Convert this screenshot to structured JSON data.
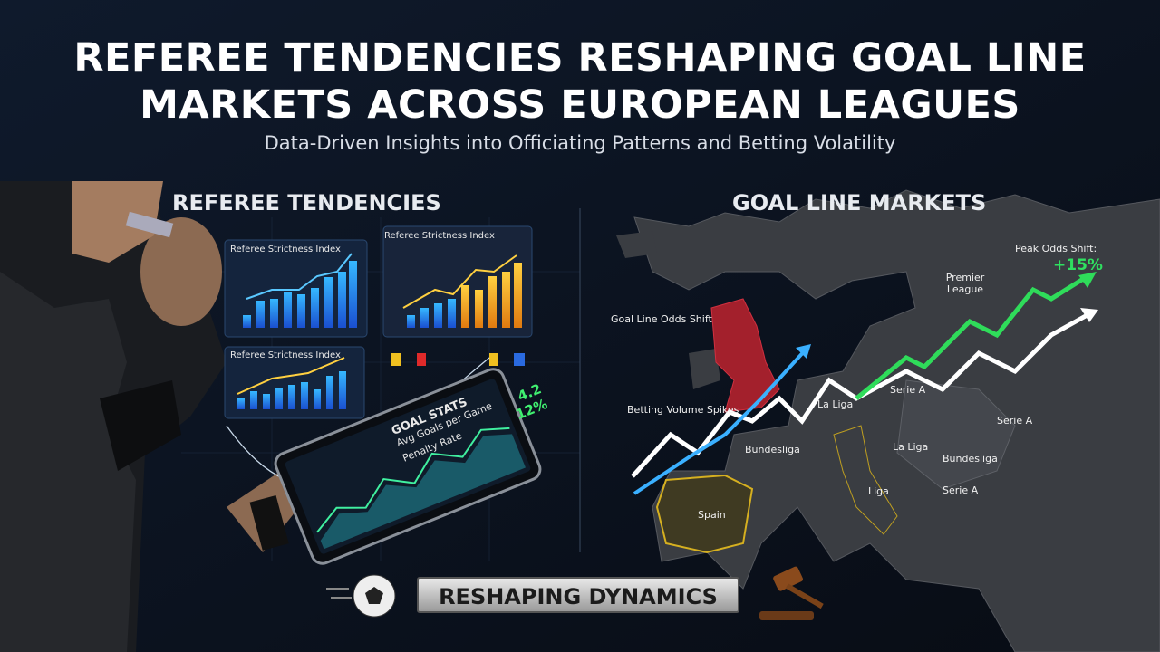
{
  "header": {
    "title": "REFEREE TENDENCIES RESHAPING GOAL LINE MARKETS ACROSS EUROPEAN LEAGUES",
    "subtitle": "Data-Driven Insights into Officiating Patterns and Betting Volatility"
  },
  "left_panel": {
    "heading": "REFEREE TENDENCIES",
    "mini_charts": [
      "Referee Strictness Index",
      "Referee Strictness Index",
      "Referee Strictness Index"
    ],
    "tablet": {
      "title": "GOAL STATS",
      "rows": [
        {
          "label": "Avg Goals per Game",
          "value": "4.2"
        },
        {
          "label": "Penalty Rate",
          "value": "12%"
        }
      ]
    }
  },
  "right_panel": {
    "heading": "GOAL LINE MARKETS",
    "chart_labels": [
      "Goal Line Odds Shift",
      "Betting Volume Spikes"
    ],
    "peak": {
      "label": "Peak Odds Shift:",
      "value": "+15%"
    },
    "map_labels": [
      "Premier League",
      "La Liga",
      "Serie A",
      "Serie A",
      "Bundesliga",
      "Bundesliga",
      "Serie A",
      "La Liga",
      "Liga",
      "Spain"
    ]
  },
  "footer": {
    "banner": "RESHAPING DYNAMICS"
  }
}
